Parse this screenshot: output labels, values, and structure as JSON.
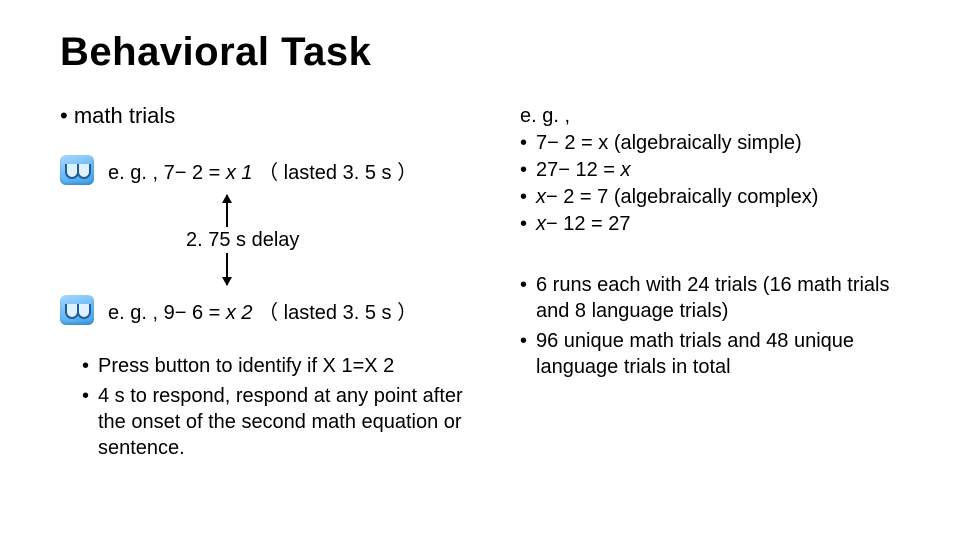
{
  "title": "Behavioral Task",
  "left": {
    "heading": "• math trials",
    "trial1": "e. g. , 7− 2 = x 1 （ lasted 3. 5 s ）",
    "delay": "2. 75 s delay",
    "trial2": "e. g. , 9− 6 = x 2 （ lasted 3. 5 s ）",
    "sub1": "Press button to identify if X 1=X 2",
    "sub2": "4 s to respond, respond at any point after the onset of the second math equation or sentence."
  },
  "right": {
    "eg_head": "e. g. ,",
    "items": [
      "7− 2 = x (algebraically simple)",
      "27− 12 = x",
      "x− 2 = 7 (algebraically complex)",
      "x− 12 = 27"
    ],
    "runs": [
      "6 runs each with 24 trials (16 math trials and 8 language trials)",
      "96 unique math trials and 48 unique language trials in total"
    ]
  },
  "style": {
    "title_fontsize": 40,
    "body_fontsize": 20,
    "heading_fontsize": 22,
    "bg_color": "#ffffff",
    "text_color": "#000000",
    "icon_gradient": [
      "#a9d8ff",
      "#68b9f7",
      "#3a9de8"
    ],
    "arrow_color": "#000000"
  }
}
